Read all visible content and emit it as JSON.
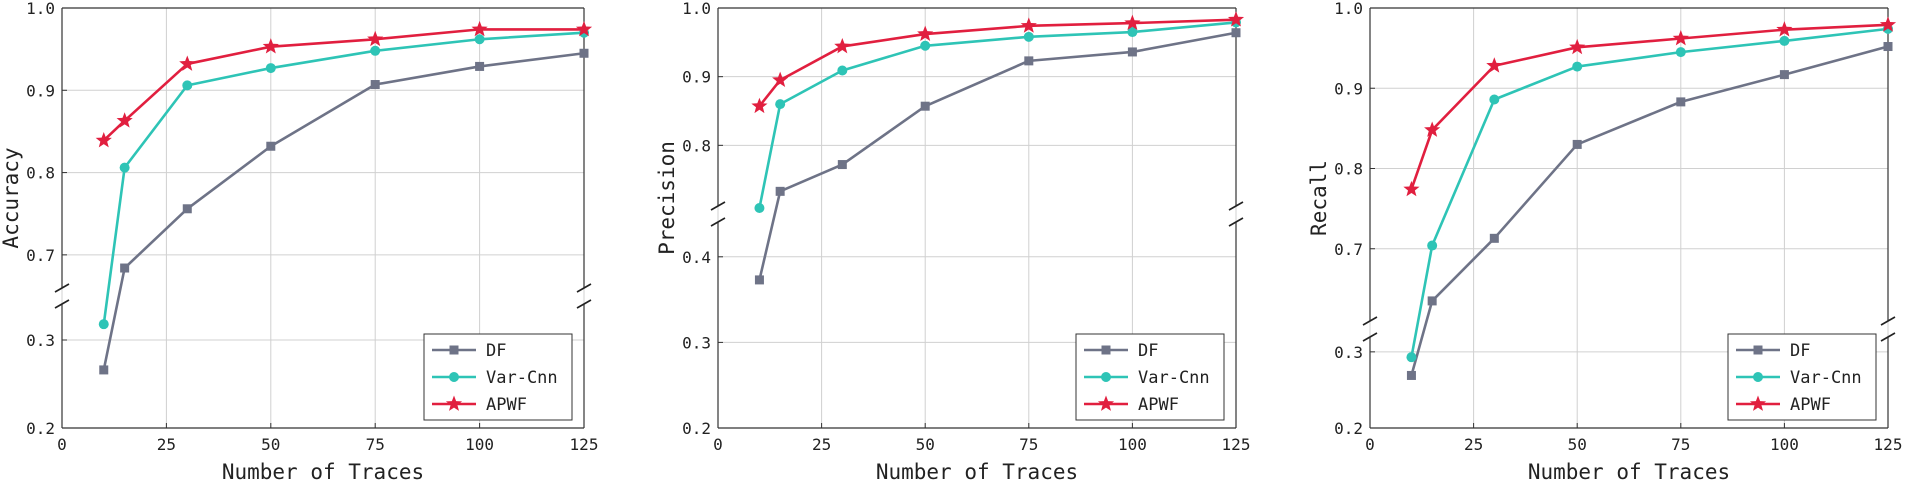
{
  "chart_data": [
    {
      "type": "line",
      "xlabel": "Number of Traces",
      "ylabel": "Accuracy",
      "xlim": [
        0,
        125
      ],
      "xticks": [
        "0",
        "25",
        "50",
        "75",
        "100",
        "125"
      ],
      "broken_axis": {
        "lower_ylim": [
          0.2,
          0.35
        ],
        "upper_ylim": [
          0.65,
          1.0
        ],
        "break_between": [
          0.35,
          0.65
        ]
      },
      "yticks": [
        "0.2",
        "0.3",
        "0.7",
        "0.8",
        "0.9",
        "1.0"
      ],
      "legend_position": "lower-right",
      "x": [
        10,
        15,
        30,
        50,
        75,
        100,
        125
      ],
      "series": [
        {
          "name": "DF",
          "color": "#6e7387",
          "marker": "square",
          "values": [
            0.266,
            0.684,
            0.756,
            0.832,
            0.907,
            0.929,
            0.945
          ]
        },
        {
          "name": "Var-Cnn",
          "color": "#2ec4b6",
          "marker": "circle",
          "values": [
            0.318,
            0.806,
            0.906,
            0.927,
            0.948,
            0.962,
            0.97
          ]
        },
        {
          "name": "APWF",
          "color": "#e11f3f",
          "marker": "star",
          "values": [
            0.839,
            0.863,
            0.932,
            0.953,
            0.962,
            0.974,
            0.974
          ]
        }
      ]
    },
    {
      "type": "line",
      "xlabel": "Number of Traces",
      "ylabel": "Precision",
      "xlim": [
        0,
        125
      ],
      "xticks": [
        "0",
        "25",
        "50",
        "75",
        "100",
        "125"
      ],
      "broken_axis": {
        "lower_ylim": [
          0.2,
          0.45
        ],
        "upper_ylim": [
          0.7,
          1.0
        ],
        "break_between": [
          0.45,
          0.7
        ]
      },
      "yticks": [
        "0.2",
        "0.3",
        "0.4",
        "0.8",
        "0.9",
        "1.0"
      ],
      "legend_position": "lower-right",
      "x": [
        10,
        15,
        30,
        50,
        75,
        100,
        125
      ],
      "series": [
        {
          "name": "DF",
          "color": "#6e7387",
          "marker": "square",
          "values": [
            0.373,
            0.733,
            0.772,
            0.857,
            0.923,
            0.936,
            0.964
          ]
        },
        {
          "name": "Var-Cnn",
          "color": "#2ec4b6",
          "marker": "circle",
          "values": [
            0.457,
            0.86,
            0.909,
            0.945,
            0.958,
            0.965,
            0.979
          ]
        },
        {
          "name": "APWF",
          "color": "#e11f3f",
          "marker": "star",
          "values": [
            0.857,
            0.895,
            0.944,
            0.962,
            0.974,
            0.978,
            0.983
          ]
        }
      ]
    },
    {
      "type": "line",
      "xlabel": "Number of Traces",
      "ylabel": "Recall",
      "xlim": [
        0,
        125
      ],
      "xticks": [
        "0",
        "25",
        "50",
        "75",
        "100",
        "125"
      ],
      "broken_axis": {
        "lower_ylim": [
          0.2,
          0.33
        ],
        "upper_ylim": [
          0.6,
          1.0
        ],
        "break_between": [
          0.33,
          0.6
        ]
      },
      "yticks": [
        "0.2",
        "0.3",
        "0.7",
        "0.8",
        "0.9",
        "1.0"
      ],
      "legend_position": "lower-right",
      "x": [
        10,
        15,
        30,
        50,
        75,
        100,
        125
      ],
      "series": [
        {
          "name": "DF",
          "color": "#6e7387",
          "marker": "square",
          "values": [
            0.269,
            0.635,
            0.713,
            0.83,
            0.883,
            0.917,
            0.952
          ]
        },
        {
          "name": "Var-Cnn",
          "color": "#2ec4b6",
          "marker": "circle",
          "values": [
            0.293,
            0.704,
            0.886,
            0.927,
            0.945,
            0.959,
            0.974
          ]
        },
        {
          "name": "APWF",
          "color": "#e11f3f",
          "marker": "star",
          "values": [
            0.774,
            0.848,
            0.928,
            0.951,
            0.962,
            0.973,
            0.979
          ]
        }
      ]
    }
  ]
}
